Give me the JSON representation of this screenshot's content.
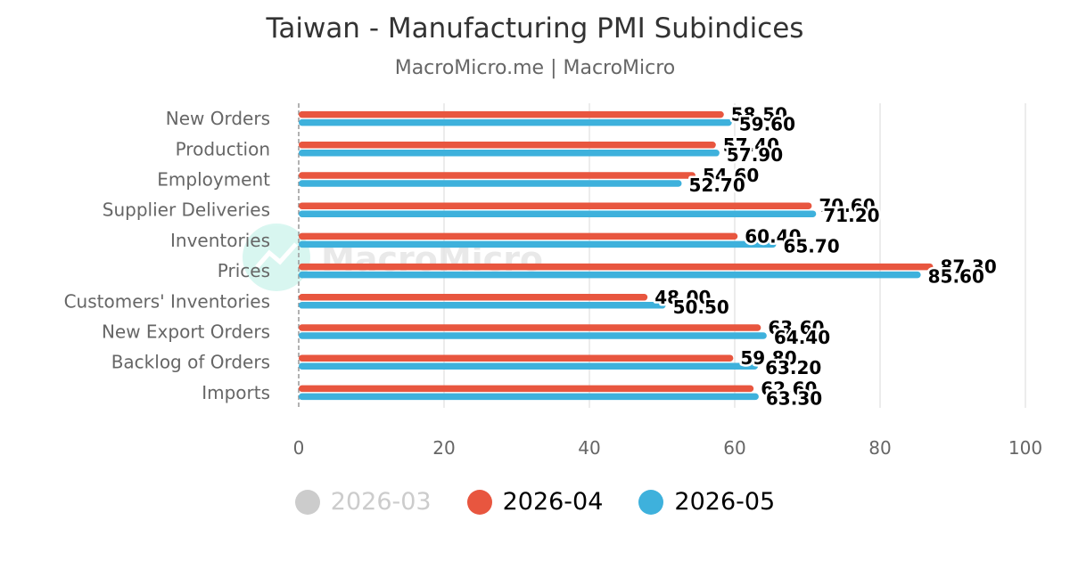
{
  "title": "Taiwan - Manufacturing PMI Subindices",
  "subtitle": "MacroMicro.me | MacroMicro",
  "watermark": "MacroMicro",
  "colors": {
    "series_2026_03": "#cccccc",
    "series_2026_04": "#e8563f",
    "series_2026_05": "#3eb1dc",
    "grid": "#e6e6e6",
    "axis": "#999999"
  },
  "legend": [
    {
      "label": "2026-03",
      "color": "#cccccc",
      "visible": false
    },
    {
      "label": "2026-04",
      "color": "#e8563f",
      "visible": true
    },
    {
      "label": "2026-05",
      "color": "#3eb1dc",
      "visible": true
    }
  ],
  "chart_data": {
    "type": "bar",
    "orientation": "horizontal",
    "title": "Taiwan - Manufacturing PMI Subindices",
    "subtitle": "MacroMicro.me | MacroMicro",
    "categories": [
      "New Orders",
      "Production",
      "Employment",
      "Supplier Deliveries",
      "Inventories",
      "Prices",
      "Customers' Inventories",
      "New Export Orders",
      "Backlog of Orders",
      "Imports"
    ],
    "series": [
      {
        "name": "2026-04",
        "color": "#e8563f",
        "values": [
          58.5,
          57.4,
          54.6,
          70.6,
          60.4,
          87.3,
          48.0,
          63.6,
          59.8,
          62.6
        ],
        "labels": [
          "58.50",
          "57.40",
          "54.60",
          "70.60",
          "60.40",
          "87.30",
          "48.00",
          "63.60",
          "59.80",
          "62.60"
        ]
      },
      {
        "name": "2026-05",
        "color": "#3eb1dc",
        "values": [
          59.6,
          57.9,
          52.7,
          71.2,
          65.7,
          85.6,
          50.5,
          64.4,
          63.2,
          63.3
        ],
        "labels": [
          "59.60",
          "57.90",
          "52.70",
          "71.20",
          "65.70",
          "85.60",
          "50.50",
          "64.40",
          "63.20",
          "63.30"
        ]
      }
    ],
    "xlim": [
      0,
      100
    ],
    "ticks": [
      0,
      20,
      40,
      60,
      80,
      100
    ],
    "tick_labels": [
      "0",
      "20",
      "40",
      "60",
      "80",
      "100"
    ],
    "grid": true,
    "legend_position": "bottom-center"
  }
}
